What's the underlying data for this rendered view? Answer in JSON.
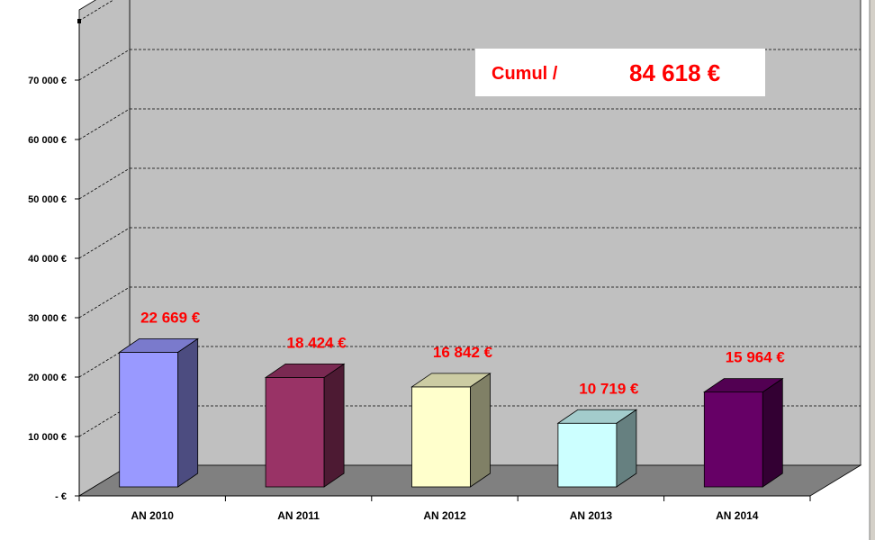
{
  "chart_data": {
    "type": "bar",
    "categories": [
      "AN 2010",
      "AN 2011",
      "AN 2012",
      "AN 2013",
      "AN 2014"
    ],
    "values": [
      22669,
      18424,
      16842,
      10719,
      15964
    ],
    "data_labels": [
      "22 669 €",
      "18 424 €",
      "16 842 €",
      "10 719 €",
      "15 964 €"
    ],
    "bar_colors": [
      "#9999ff",
      "#993366",
      "#ffffcc",
      "#ccffff",
      "#660066"
    ],
    "bar_side_colors": [
      "#4c4c80",
      "#4d1a33",
      "#808066",
      "#668080",
      "#330033"
    ],
    "bar_top_colors": [
      "#7a7acc",
      "#7a2952",
      "#cccca3",
      "#a3cccc",
      "#520052"
    ],
    "ylim": [
      0,
      80000
    ],
    "y_ticks": [
      0,
      10000,
      20000,
      30000,
      40000,
      50000,
      60000,
      70000
    ],
    "y_tick_labels": [
      "-   €",
      "10 000 €",
      "20 000 €",
      "30 000 €",
      "40 000 €",
      "50 000 €",
      "60 000 €",
      "70 000 €"
    ],
    "grid": true,
    "three_d": true,
    "xlabel": "",
    "ylabel": "",
    "annotation": {
      "label": "Cumul /",
      "value": "84 618 €"
    }
  },
  "colors": {
    "back_wall": "#c0c0c0",
    "side_wall": "#c0c0c0",
    "floor": "#808080",
    "label_red": "#ff0000",
    "annotation_bg": "#ffffff"
  }
}
